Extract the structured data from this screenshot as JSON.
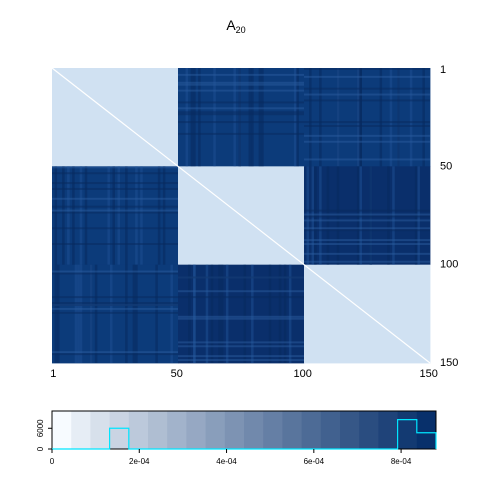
{
  "chart_data": [
    {
      "type": "heatmap",
      "title": "A",
      "title_subscript": "20",
      "rows": 150,
      "cols": 150,
      "x_ticks": [
        "1",
        "50",
        "100",
        "150"
      ],
      "y_ticks": [
        "1",
        "50",
        "100",
        "150"
      ],
      "y_axis_side": "right",
      "blocks": [
        {
          "rows": [
            1,
            50
          ],
          "cols": [
            1,
            50
          ],
          "level": "low"
        },
        {
          "rows": [
            1,
            50
          ],
          "cols": [
            51,
            100
          ],
          "level": "high"
        },
        {
          "rows": [
            1,
            50
          ],
          "cols": [
            101,
            150
          ],
          "level": "high"
        },
        {
          "rows": [
            51,
            100
          ],
          "cols": [
            1,
            50
          ],
          "level": "high"
        },
        {
          "rows": [
            51,
            100
          ],
          "cols": [
            51,
            100
          ],
          "level": "low"
        },
        {
          "rows": [
            51,
            100
          ],
          "cols": [
            101,
            150
          ],
          "level": "very-high"
        },
        {
          "rows": [
            101,
            150
          ],
          "cols": [
            1,
            50
          ],
          "level": "high"
        },
        {
          "rows": [
            101,
            150
          ],
          "cols": [
            51,
            100
          ],
          "level": "very-high"
        },
        {
          "rows": [
            101,
            150
          ],
          "cols": [
            101,
            150
          ],
          "level": "low"
        }
      ],
      "diagonal": "white",
      "colors": {
        "low": "#d0e1f2",
        "high": "#0c3b7a",
        "very-high": "#0a2f6b",
        "diagonal": "#ffffff"
      }
    },
    {
      "type": "histogram",
      "title": "",
      "x_ticks": [
        "0",
        "2e-04",
        "4e-04",
        "6e-04",
        "8e-04"
      ],
      "x_tick_values": [
        0,
        0.0002,
        0.0004,
        0.0006,
        0.0008
      ],
      "xlim": [
        0,
        0.00088
      ],
      "y_ticks": [
        "0",
        "6000"
      ],
      "y_tick_values": [
        0,
        6000
      ],
      "ylim": [
        0,
        11000
      ],
      "color_bins": 20,
      "palette_start": "#f7fbff",
      "palette_end": "#08306b",
      "outline_color": "#00e5ff",
      "counts": [
        0,
        0,
        0,
        6000,
        0,
        0,
        0,
        0,
        0,
        0,
        0,
        0,
        0,
        0,
        0,
        0,
        0,
        0,
        8500,
        4700
      ]
    }
  ]
}
